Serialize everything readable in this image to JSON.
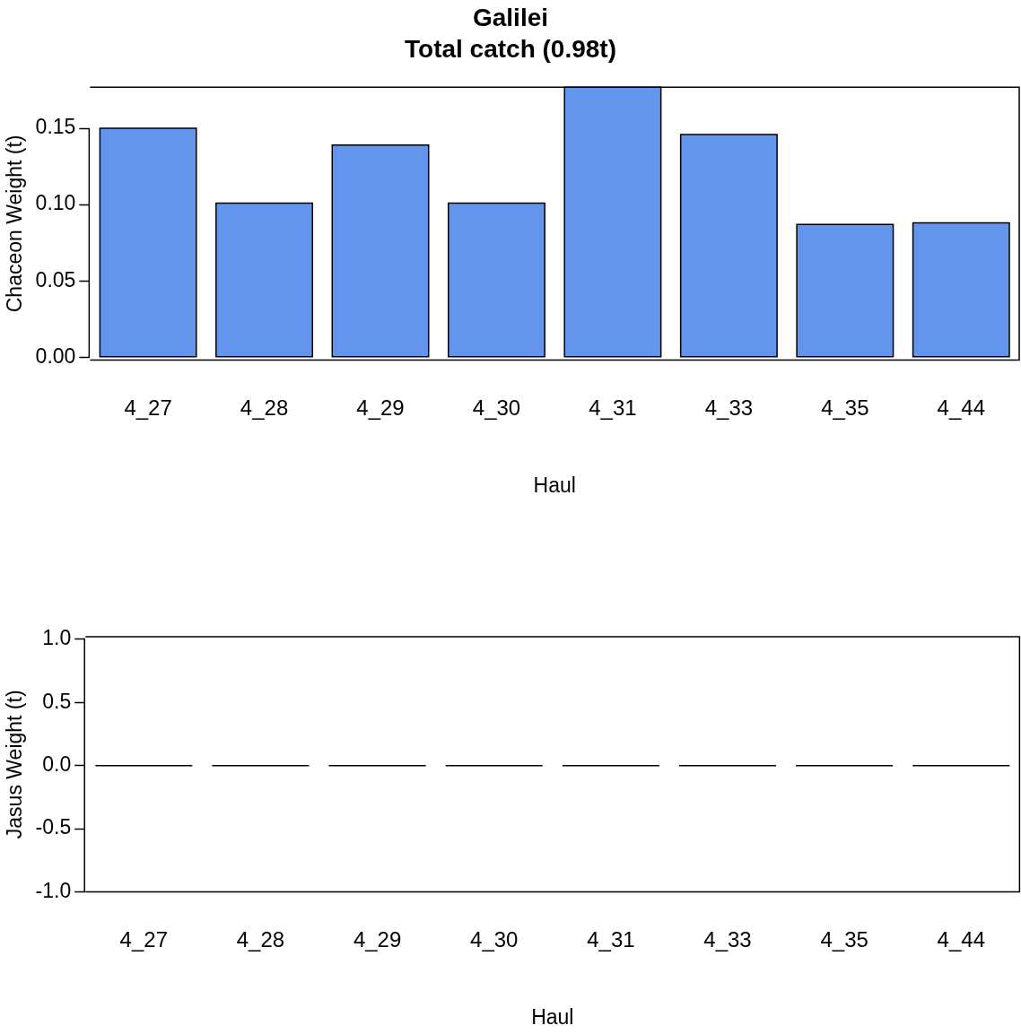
{
  "chart_data": [
    {
      "type": "bar",
      "title": "Galilei",
      "subtitle": "Total catch (0.98t)",
      "xlabel": "Haul",
      "ylabel": "Chaceon Weight (t)",
      "categories": [
        "4_27",
        "4_28",
        "4_29",
        "4_30",
        "4_31",
        "4_33",
        "4_35",
        "4_44"
      ],
      "values": [
        0.15,
        0.101,
        0.139,
        0.101,
        0.177,
        0.146,
        0.087,
        0.088
      ],
      "color": "#6495ed",
      "ylim": [
        -0.002,
        0.177
      ],
      "yticks": [
        {
          "value": 0,
          "label": "0.00"
        },
        {
          "value": 0.05,
          "label": "0.05"
        },
        {
          "value": 0.1,
          "label": "0.10"
        },
        {
          "value": 0.15,
          "label": "0.15"
        }
      ],
      "grid": false,
      "legend": false
    },
    {
      "type": "bar",
      "xlabel": "Haul",
      "ylabel": "Jasus Weight (t)",
      "categories": [
        "4_27",
        "4_28",
        "4_29",
        "4_30",
        "4_31",
        "4_33",
        "4_35",
        "4_44"
      ],
      "values": [
        0,
        0,
        0,
        0,
        0,
        0,
        0,
        0
      ],
      "color": "#000000",
      "ylim": [
        -1.0,
        1.02
      ],
      "yticks": [
        {
          "value": -1,
          "label": "-1.0"
        },
        {
          "value": -0.5,
          "label": "-0.5"
        },
        {
          "value": 0,
          "label": "0.0"
        },
        {
          "value": 0.5,
          "label": "0.5"
        },
        {
          "value": 1,
          "label": "1.0"
        }
      ],
      "grid": false,
      "legend": false
    }
  ]
}
